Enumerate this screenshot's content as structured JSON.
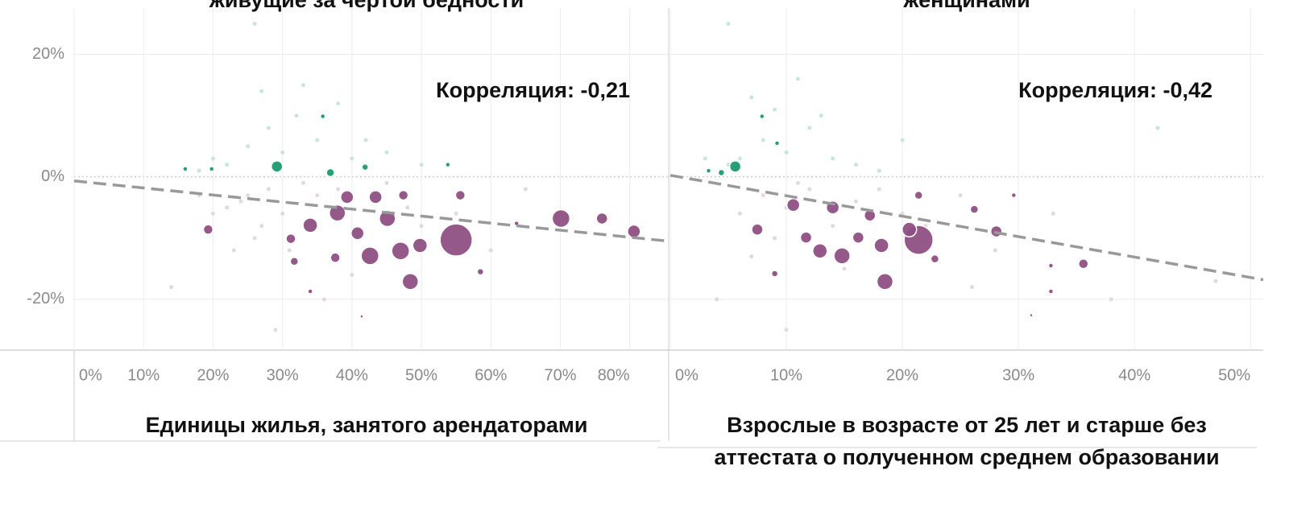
{
  "chart_data": [
    {
      "type": "scatter",
      "title": "живущие за чертой бедности",
      "annotation": "Корреляция: -0,21",
      "x_label": "Единицы жилья, занятого арендаторами",
      "xlim": [
        0,
        85.6
      ],
      "ylim": [
        -28.3,
        28.9
      ],
      "xticks": [
        {
          "value": 0,
          "label": "0%"
        },
        {
          "value": 10,
          "label": "10%"
        },
        {
          "value": 20,
          "label": "20%"
        },
        {
          "value": 30,
          "label": "30%"
        },
        {
          "value": 40,
          "label": "40%"
        },
        {
          "value": 50,
          "label": "50%"
        },
        {
          "value": 60,
          "label": "60%"
        },
        {
          "value": 70,
          "label": "70%"
        },
        {
          "value": 80,
          "label": "80%"
        }
      ],
      "yticks": [
        {
          "value": -20,
          "label": "-20%"
        },
        {
          "value": 0,
          "label": "0%"
        },
        {
          "value": 20,
          "label": "20%"
        }
      ],
      "trend": {
        "color": "#999999",
        "x": [
          0,
          85.6
        ],
        "values": [
          -0.66,
          -10.5
        ]
      },
      "series": [
        {
          "color": "#e2d6e0",
          "size": 2.5,
          "x": [
            25,
            28,
            22,
            30,
            33,
            27,
            24,
            35,
            38,
            20,
            31,
            26,
            18,
            45,
            50,
            55,
            60,
            14,
            29,
            40,
            65,
            23,
            36,
            48
          ],
          "values": [
            -3,
            -2,
            -5,
            -6,
            -1,
            -8,
            -4,
            -3,
            -2,
            -6,
            -12,
            -10,
            -3,
            -1,
            -8,
            -6,
            -12,
            -18,
            -25,
            -16,
            -2,
            -12,
            -20,
            -5
          ]
        },
        {
          "color": "#c4e6d8",
          "size": 2.5,
          "x": [
            20,
            25,
            28,
            22,
            30,
            32,
            35,
            27,
            40,
            45,
            18,
            38,
            26,
            33,
            50,
            42
          ],
          "values": [
            3,
            5,
            8,
            2,
            4,
            10,
            6,
            14,
            3,
            4,
            1,
            12,
            25,
            15,
            2,
            6
          ]
        },
        {
          "color": "#1b9a6e",
          "x": [
            29.2,
            36.9,
            41.9,
            35.8,
            53.8,
            16,
            19.8
          ],
          "values": [
            1.7,
            0.7,
            1.6,
            9.9,
            2,
            1.3,
            1.3
          ],
          "sizes": [
            7,
            5,
            4,
            3,
            3,
            3,
            3
          ]
        },
        {
          "color": "#8e4f83",
          "x": [
            55,
            70.1,
            76,
            80.6,
            48.4,
            42.6,
            47,
            49.8,
            55.6,
            37.9,
            34,
            31.2,
            31.7,
            19.3,
            39.3,
            43.4,
            45.1,
            40.8,
            37.6,
            41.4,
            58.5,
            63.7,
            34,
            47.4
          ],
          "values": [
            -10.3,
            -6.8,
            -6.8,
            -8.9,
            -17.1,
            -12.9,
            -12.1,
            -11.2,
            -3,
            -5.9,
            -7.9,
            -10.1,
            -13.8,
            -8.6,
            -3.3,
            -3.3,
            -6.8,
            -9.2,
            -13.2,
            -22.8,
            -15.5,
            -7.6,
            -18.7,
            -3
          ],
          "sizes": [
            20,
            11,
            7,
            8,
            10,
            11,
            11,
            9,
            6,
            10,
            9,
            6,
            5,
            6,
            8,
            8,
            10,
            8,
            6,
            2,
            4,
            3,
            3,
            6
          ]
        }
      ]
    },
    {
      "type": "scatter",
      "title": "женщинами",
      "annotation": "Корреляция: -0,42",
      "x_label": "Взрослые в возрасте от 25 лет и старше без аттестата о полученном среднем образовании",
      "xlim": [
        0,
        51.1
      ],
      "ylim": [
        -28.3,
        28.9
      ],
      "xticks": [
        {
          "value": 0,
          "label": "0%"
        },
        {
          "value": 10,
          "label": "10%"
        },
        {
          "value": 20,
          "label": "20%"
        },
        {
          "value": 30,
          "label": "30%"
        },
        {
          "value": 40,
          "label": "40%"
        },
        {
          "value": 50,
          "label": "50%"
        }
      ],
      "yticks": [
        {
          "value": -20,
          "label": "-20%"
        },
        {
          "value": 0,
          "label": "0%"
        },
        {
          "value": 20,
          "label": "20%"
        }
      ],
      "trend": {
        "color": "#999999",
        "x": [
          0,
          51.1
        ],
        "values": [
          0.26,
          -16.8
        ]
      },
      "series": [
        {
          "color": "#e2d6e0",
          "size": 2.5,
          "x": [
            8,
            10,
            12,
            6,
            14,
            11,
            16,
            9,
            18,
            13,
            20,
            7,
            15,
            22,
            25,
            28,
            33,
            38,
            4,
            47,
            26,
            10
          ],
          "values": [
            -3,
            -5,
            -2,
            -6,
            -8,
            -1,
            -4,
            -10,
            -2,
            -12,
            -6,
            -13,
            -15,
            -8,
            -3,
            -12,
            -6,
            -20,
            -20,
            -17,
            -18,
            -25
          ]
        },
        {
          "color": "#c4e6d8",
          "size": 2.5,
          "x": [
            6,
            8,
            10,
            12,
            5,
            9,
            14,
            11,
            16,
            7,
            3,
            20,
            13,
            5,
            18,
            42
          ],
          "values": [
            3,
            6,
            4,
            8,
            2,
            11,
            3,
            16,
            2,
            13,
            3,
            6,
            10,
            25,
            1,
            8
          ]
        },
        {
          "color": "#1b9a6e",
          "x": [
            5.6,
            4.4,
            7.9,
            9.2,
            3.3
          ],
          "values": [
            1.7,
            0.7,
            9.9,
            5.5,
            1
          ],
          "sizes": [
            7,
            4,
            3,
            3,
            3
          ]
        },
        {
          "color": "#8e4f83",
          "x": [
            21.4,
            18.5,
            14.8,
            12.9,
            14,
            18.2,
            20.6,
            26.2,
            28.1,
            35.6,
            32.8,
            32.8,
            29.6,
            21.4,
            9,
            10.6,
            7.5,
            22.8,
            16.2,
            17.2,
            11.7,
            31.1
          ],
          "values": [
            -10.3,
            -17.1,
            -12.9,
            -12.1,
            -5,
            -11.2,
            -8.6,
            -5.3,
            -8.9,
            -14.2,
            -14.5,
            -18.7,
            -3,
            -3,
            -15.8,
            -4.6,
            -8.6,
            -13.4,
            -9.9,
            -6.3,
            -9.9,
            -22.6
          ],
          "sizes": [
            18,
            10,
            10,
            9,
            8,
            9,
            9,
            5,
            7,
            6,
            3,
            3,
            3,
            5,
            4,
            8,
            7,
            5,
            7,
            7,
            7,
            2
          ]
        }
      ]
    }
  ]
}
